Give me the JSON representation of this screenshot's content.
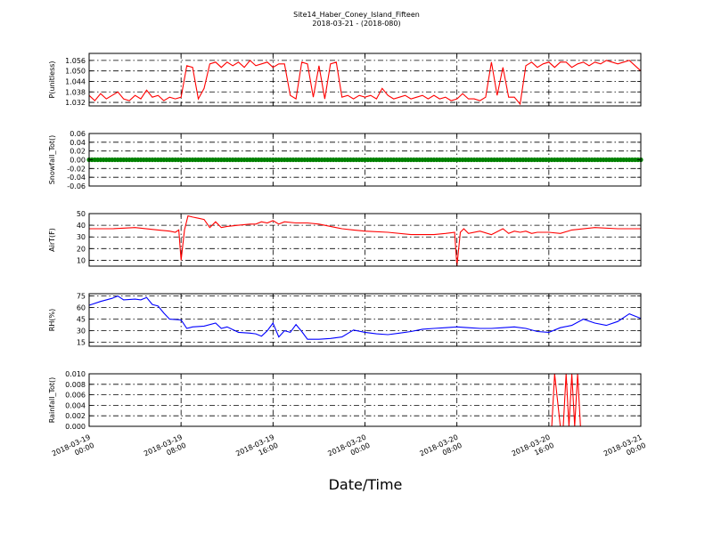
{
  "title": {
    "line1": "Site14_Haber_Coney_Island_Fifteen",
    "line2": "2018-03-21 - (2018-080)"
  },
  "x_axis_label": "Date/Time",
  "x_ticks": [
    [
      "2018-03-19",
      "00:00"
    ],
    [
      "2018-03-19",
      "08:00"
    ],
    [
      "2018-03-19",
      "16:00"
    ],
    [
      "2018-03-20",
      "00:00"
    ],
    [
      "2018-03-20",
      "08:00"
    ],
    [
      "2018-03-20",
      "16:00"
    ],
    [
      "2018-03-21",
      "00:00"
    ]
  ],
  "chart_data": [
    {
      "type": "line",
      "ylabel": "P(unitless)",
      "color": "#ff0000",
      "ylim": [
        1.03,
        1.06
      ],
      "yticks": [
        "1.056",
        "1.050",
        "1.044",
        "1.038",
        "1.032"
      ],
      "ytick_values": [
        1.056,
        1.05,
        1.044,
        1.038,
        1.032
      ],
      "xlim_hours": [
        0,
        48
      ],
      "x_hours": [
        0,
        0.5,
        1,
        1.5,
        2,
        2.5,
        3,
        3.5,
        4,
        4.5,
        5,
        5.5,
        6,
        6.5,
        7,
        7.5,
        8,
        8.5,
        9,
        9.5,
        10,
        10.5,
        11,
        11.5,
        12,
        12.5,
        13,
        13.5,
        14,
        14.5,
        15,
        15.5,
        16,
        16.5,
        17,
        17.5,
        18,
        18.5,
        19,
        19.5,
        20,
        20.5,
        21,
        21.5,
        22,
        22.5,
        23,
        23.5,
        24,
        24.5,
        25,
        25.5,
        26,
        26.5,
        27,
        27.5,
        28,
        28.5,
        29,
        29.5,
        30,
        30.5,
        31,
        31.5,
        32,
        32.5,
        33,
        33.5,
        34,
        34.5,
        35,
        35.5,
        36,
        36.5,
        37,
        37.5,
        38,
        38.5,
        39,
        39.5,
        40,
        40.5,
        41,
        41.5,
        42,
        42.5,
        43,
        43.5,
        44,
        44.5,
        45,
        45.5,
        46,
        46.5,
        47,
        47.5,
        48
      ],
      "values": [
        1.036,
        1.033,
        1.037,
        1.034,
        1.036,
        1.038,
        1.034,
        1.033,
        1.036,
        1.034,
        1.039,
        1.035,
        1.036,
        1.033,
        1.035,
        1.034,
        1.035,
        1.053,
        1.052,
        1.034,
        1.04,
        1.054,
        1.055,
        1.052,
        1.055,
        1.053,
        1.055,
        1.052,
        1.056,
        1.053,
        1.054,
        1.055,
        1.052,
        1.054,
        1.054,
        1.036,
        1.034,
        1.055,
        1.054,
        1.035,
        1.053,
        1.034,
        1.054,
        1.055,
        1.035,
        1.036,
        1.034,
        1.036,
        1.035,
        1.036,
        1.034,
        1.04,
        1.036,
        1.034,
        1.035,
        1.036,
        1.034,
        1.035,
        1.036,
        1.034,
        1.036,
        1.034,
        1.035,
        1.033,
        1.034,
        1.037,
        1.034,
        1.034,
        1.033,
        1.035,
        1.055,
        1.036,
        1.052,
        1.035,
        1.035,
        1.031,
        1.053,
        1.055,
        1.052,
        1.054,
        1.055,
        1.052,
        1.055,
        1.055,
        1.052,
        1.054,
        1.055,
        1.053,
        1.055,
        1.054,
        1.056,
        1.055,
        1.054,
        1.055,
        1.056,
        1.053,
        1.05
      ],
      "grid": true
    },
    {
      "type": "scatter",
      "ylabel": "Snowfall_Tot()",
      "color": "#008000",
      "ylim": [
        -0.06,
        0.06
      ],
      "yticks": [
        "0.06",
        "0.04",
        "0.02",
        "0.00",
        "-0.02",
        "-0.04",
        "-0.06"
      ],
      "ytick_values": [
        0.06,
        0.04,
        0.02,
        0.0,
        -0.02,
        -0.04,
        -0.06
      ],
      "xlim_hours": [
        0,
        48
      ],
      "constant_value": 0.0,
      "point_interval_hours": 0.25,
      "grid": true
    },
    {
      "type": "line",
      "ylabel": "AirT(F)",
      "color": "#ff0000",
      "ylim": [
        5,
        50
      ],
      "yticks": [
        "50",
        "40",
        "30",
        "20",
        "10"
      ],
      "ytick_values": [
        50,
        40,
        30,
        20,
        10
      ],
      "xlim_hours": [
        0,
        48
      ],
      "x_hours": [
        0,
        2,
        4,
        6,
        7,
        7.5,
        7.8,
        8.0,
        8.3,
        8.6,
        9,
        9.5,
        10,
        10.5,
        11,
        11.5,
        12,
        13,
        14,
        14.5,
        15,
        15.5,
        16,
        16.5,
        17,
        18,
        19,
        20,
        21,
        22,
        23,
        24,
        26,
        28,
        30,
        31,
        31.8,
        32.0,
        32.3,
        32.6,
        33,
        34,
        35,
        36,
        36.5,
        37,
        37.5,
        38,
        38.5,
        39,
        40,
        41,
        42,
        44,
        46,
        48
      ],
      "values": [
        37,
        37,
        38,
        36,
        35,
        34,
        36,
        10,
        36,
        48,
        47,
        46,
        45,
        38,
        43,
        38,
        39,
        40,
        41,
        41,
        43,
        42,
        44,
        41,
        43,
        42,
        42,
        41,
        39,
        37,
        36,
        35,
        34,
        32,
        32,
        33,
        34,
        5,
        34,
        37,
        33,
        35,
        32,
        37,
        33,
        35,
        34,
        35,
        33,
        34,
        34,
        33,
        36,
        38,
        37,
        37
      ],
      "grid": true
    },
    {
      "type": "line",
      "ylabel": "RH(%)",
      "color": "#0000ff",
      "ylim": [
        10,
        78
      ],
      "yticks": [
        "75",
        "60",
        "45",
        "30",
        "15"
      ],
      "ytick_values": [
        75,
        60,
        45,
        30,
        15
      ],
      "xlim_hours": [
        0,
        48
      ],
      "x_hours": [
        0,
        1,
        2,
        2.5,
        3,
        4,
        4.5,
        5,
        5.5,
        6,
        6.5,
        7,
        8,
        8.5,
        9,
        10,
        11,
        11.5,
        12,
        13,
        14,
        14.5,
        15,
        15.5,
        16,
        16.5,
        17,
        17.5,
        18,
        18.5,
        19,
        20,
        21,
        22,
        23,
        24,
        25,
        26,
        27,
        28,
        29,
        30,
        31,
        32,
        33,
        34,
        35,
        36,
        37,
        38,
        39,
        40,
        41,
        42,
        43,
        44,
        45,
        46,
        47,
        48
      ],
      "values": [
        63,
        68,
        72,
        75,
        70,
        71,
        70,
        73,
        64,
        62,
        53,
        45,
        44,
        33,
        35,
        36,
        40,
        33,
        35,
        28,
        27,
        26,
        23,
        30,
        40,
        22,
        30,
        28,
        38,
        29,
        19,
        19,
        20,
        22,
        31,
        28,
        26,
        25,
        27,
        29,
        32,
        33,
        34,
        35,
        34,
        33,
        33,
        34,
        35,
        33,
        29,
        28,
        34,
        37,
        45,
        40,
        37,
        42,
        52,
        46
      ],
      "grid": true
    },
    {
      "type": "line",
      "ylabel": "Rainfall_Tot()",
      "color": "#ff0000",
      "ylim": [
        0,
        0.01
      ],
      "yticks": [
        "0.010",
        "0.008",
        "0.006",
        "0.004",
        "0.002",
        "0.000"
      ],
      "ytick_values": [
        0.01,
        0.008,
        0.006,
        0.004,
        0.002,
        0.0
      ],
      "xlim_hours": [
        0,
        48
      ],
      "x_hours": [
        0,
        40.0,
        40.25,
        40.5,
        41.0,
        41.25,
        41.5,
        41.75,
        42.0,
        42.25,
        42.5,
        42.75,
        48
      ],
      "values": [
        0,
        0,
        0,
        0.01,
        0,
        0,
        0.01,
        0,
        0.01,
        0,
        0.01,
        0,
        0
      ],
      "grid": true
    }
  ]
}
